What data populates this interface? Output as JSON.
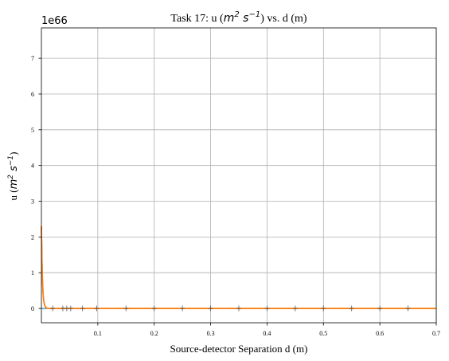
{
  "chart_data": {
    "type": "line",
    "title": {
      "prefix": "Task  17: u  (",
      "unit_base": "m",
      "unit_exp1": "2",
      "unit_mid": " s",
      "unit_exp2": "−1",
      "suffix": ")  vs.  d  (m)"
    },
    "xlabel": "Source-detector  Separation  d  (m)",
    "ylabel": {
      "prefix": "u  (",
      "unit_base": "m",
      "unit_exp1": "2",
      "unit_mid": " s",
      "unit_exp2": "−1",
      "suffix": ")"
    },
    "offset_text": "1e66",
    "xlim": [
      0.0,
      0.7
    ],
    "ylim": [
      -0.4,
      7.85
    ],
    "x_ticks": [
      0.1,
      0.2,
      0.3,
      0.4,
      0.5,
      0.6,
      0.7
    ],
    "x_tick_labels": [
      "0.1",
      "0.2",
      "0.3",
      "0.4",
      "0.5",
      "0.6",
      "0.7"
    ],
    "y_ticks": [
      0,
      1,
      2,
      3,
      4,
      5,
      6,
      7
    ],
    "y_tick_labels": [
      "0",
      "1",
      "2",
      "3",
      "4",
      "5",
      "6",
      "7"
    ],
    "grid": true,
    "series": [
      {
        "color": "#ff7f0e",
        "x": [
          0.0,
          0.001,
          0.002,
          0.003,
          0.004,
          0.005,
          0.006,
          0.008,
          0.01,
          0.015,
          0.7
        ],
        "y": [
          2.3,
          1.35,
          0.75,
          0.42,
          0.24,
          0.14,
          0.08,
          0.03,
          0.01,
          0.0,
          0.0
        ]
      },
      {
        "color": "#1f77b4",
        "x": [
          0.0,
          0.7
        ],
        "y": [
          0.0,
          0.0
        ]
      }
    ],
    "markers": {
      "style": "plus",
      "color": "#555555",
      "x": [
        0.02,
        0.038,
        0.045,
        0.052,
        0.073,
        0.098,
        0.15,
        0.2,
        0.25,
        0.3,
        0.35,
        0.4,
        0.45,
        0.5,
        0.55,
        0.6,
        0.65
      ],
      "y": [
        0,
        0,
        0,
        0,
        0,
        0,
        0,
        0,
        0,
        0,
        0,
        0,
        0,
        0,
        0,
        0,
        0
      ]
    }
  }
}
